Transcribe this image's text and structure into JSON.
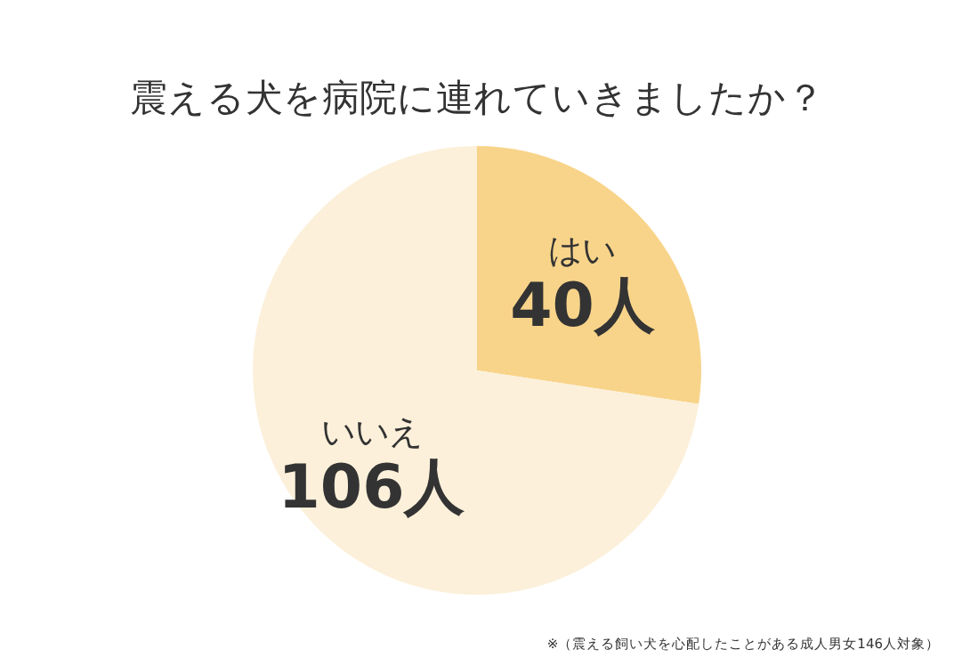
{
  "chart_data": {
    "type": "pie",
    "title": "震える犬を病院に連れていきましたか？",
    "categories": [
      "はい",
      "いいえ"
    ],
    "values": [
      40,
      106
    ],
    "colors": [
      "#f8d48a",
      "#fcf0da"
    ],
    "value_labels": [
      "40人",
      "106人"
    ],
    "annotations": [
      "※（震える飼い犬を心配したことがある成人男女146人対象）"
    ]
  }
}
